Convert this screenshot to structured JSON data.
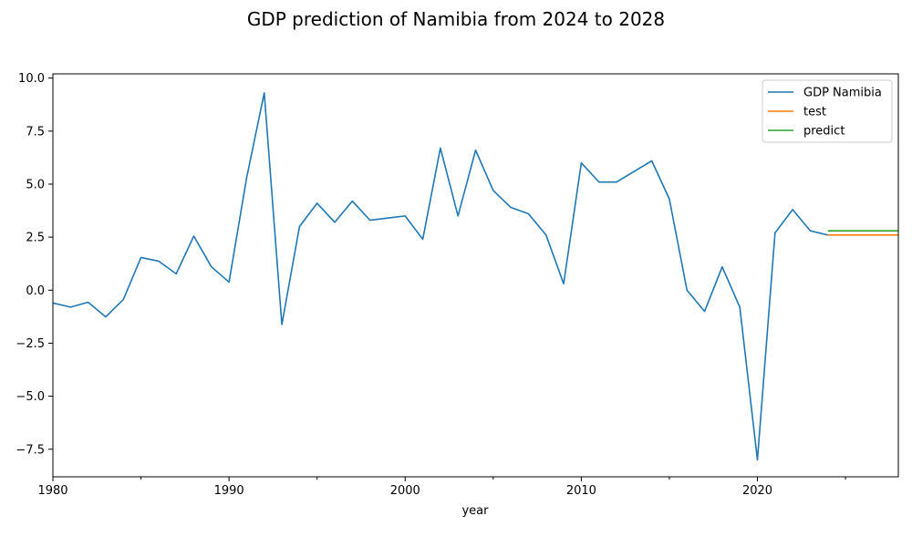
{
  "chart_data": {
    "type": "line",
    "title": "GDP prediction of Namibia from 2024 to 2028",
    "xlabel": "year",
    "ylabel": "",
    "xlim": [
      1980,
      2028
    ],
    "ylim": [
      -8.8,
      10.2
    ],
    "x_ticks": [
      1980,
      1990,
      2000,
      2010,
      2020
    ],
    "x_minor_ticks": [
      1985,
      1995,
      2005,
      2015,
      2025
    ],
    "y_ticks": [
      -7.5,
      -5.0,
      -2.5,
      0.0,
      2.5,
      5.0,
      7.5,
      10.0
    ],
    "x_tick_labels": [
      "1980",
      "1990",
      "2000",
      "2010",
      "2020"
    ],
    "y_tick_labels": [
      "−7.5",
      "−5.0",
      "−2.5",
      "0.0",
      "2.5",
      "5.0",
      "7.5",
      "10.0"
    ],
    "grid": false,
    "legend_position": "top-right",
    "series": [
      {
        "name": "GDP Namibia",
        "color": "#1f77b4",
        "x": [
          1980,
          1981,
          1982,
          1983,
          1984,
          1985,
          1986,
          1987,
          1988,
          1989,
          1990,
          1991,
          1992,
          1993,
          1994,
          1995,
          1996,
          1997,
          1998,
          1999,
          2000,
          2001,
          2002,
          2003,
          2004,
          2005,
          2006,
          2007,
          2008,
          2009,
          2010,
          2011,
          2012,
          2013,
          2014,
          2015,
          2016,
          2017,
          2018,
          2019,
          2020,
          2021,
          2022,
          2023,
          2024
        ],
        "values": [
          -0.6,
          -0.8,
          -0.57,
          -1.26,
          -0.44,
          1.54,
          1.37,
          0.77,
          2.55,
          1.1,
          0.38,
          5.3,
          9.3,
          -1.62,
          3.0,
          4.1,
          3.2,
          4.2,
          3.3,
          3.4,
          3.5,
          2.4,
          6.7,
          3.5,
          6.6,
          4.7,
          3.9,
          3.6,
          2.6,
          0.3,
          6.0,
          5.1,
          5.1,
          5.6,
          6.1,
          4.3,
          0.0,
          -1.0,
          1.1,
          -0.8,
          -8.0,
          2.7,
          3.8,
          2.8,
          2.6
        ]
      },
      {
        "name": "test",
        "color": "#ff7f0e",
        "x": [
          2024,
          2025,
          2026,
          2027,
          2028
        ],
        "values": [
          2.6,
          2.6,
          2.6,
          2.6,
          2.6
        ]
      },
      {
        "name": "predict",
        "color": "#2ca02c",
        "x": [
          2024,
          2025,
          2026,
          2027,
          2028
        ],
        "values": [
          2.8,
          2.8,
          2.8,
          2.8,
          2.8
        ]
      }
    ]
  }
}
